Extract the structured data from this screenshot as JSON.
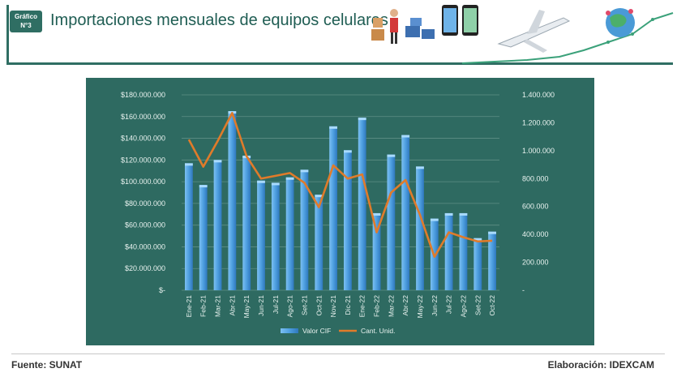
{
  "header": {
    "badge_line1": "Gráfico",
    "badge_line2": "N°3",
    "title": "Importaciones mensuales de equipos celulares"
  },
  "footer": {
    "source": "Fuente: SUNAT",
    "credit": "Elaboración: IDEXCAM"
  },
  "colors": {
    "panel_bg": "#2e6a61",
    "bar": "#5aa9e6",
    "line": "#e07b2a",
    "header_accent": "#2f6e63"
  },
  "chart_data": {
    "type": "bar",
    "categories": [
      "Ene-21",
      "Feb-21",
      "Mar-21",
      "Abr-21",
      "May-21",
      "Jun-21",
      "Jul-21",
      "Ago-21",
      "Set-21",
      "Oct-21",
      "Nov-21",
      "Dic-21",
      "Ene-22",
      "Feb-22",
      "Mar-22",
      "Abr-22",
      "May-22",
      "Jun-22",
      "Jul-22",
      "Ago-22",
      "Set-22",
      "Oct-22"
    ],
    "series": [
      {
        "name": "Valor CIF",
        "kind": "bar",
        "axis": "left",
        "values": [
          117000000,
          97000000,
          120000000,
          165000000,
          124000000,
          101000000,
          99000000,
          104000000,
          111000000,
          88000000,
          151000000,
          129000000,
          159000000,
          71000000,
          125000000,
          143000000,
          114000000,
          66000000,
          71000000,
          71000000,
          48000000,
          54000000
        ]
      },
      {
        "name": "Cant. Unid.",
        "kind": "line",
        "axis": "right",
        "values": [
          1080000,
          885000,
          1070000,
          1270000,
          960000,
          800000,
          820000,
          840000,
          770000,
          595000,
          895000,
          800000,
          830000,
          415000,
          700000,
          790000,
          540000,
          240000,
          415000,
          380000,
          350000,
          355000
        ]
      }
    ],
    "y_left": {
      "ylim": [
        0,
        180000000
      ],
      "ticks": [
        0,
        20000000,
        40000000,
        60000000,
        80000000,
        100000000,
        120000000,
        140000000,
        160000000,
        180000000
      ],
      "tick_labels": [
        "$-",
        "$20.000.000",
        "$40.000.000",
        "$60.000.000",
        "$80.000.000",
        "$100.000.000",
        "$120.000.000",
        "$140.000.000",
        "$160.000.000",
        "$180.000.000"
      ]
    },
    "y_right": {
      "ylim": [
        0,
        1400000
      ],
      "ticks": [
        0,
        200000,
        400000,
        600000,
        800000,
        1000000,
        1200000,
        1400000
      ],
      "tick_labels": [
        "-",
        "200.000",
        "400.000",
        "600.000",
        "800.000",
        "1.000.000",
        "1.200.000",
        "1.400.000"
      ]
    },
    "grid": true,
    "legend": "bottom"
  }
}
